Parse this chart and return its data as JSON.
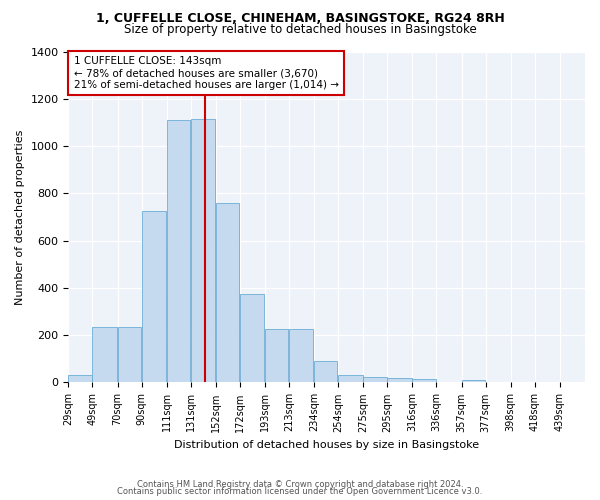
{
  "title_line1": "1, CUFFELLE CLOSE, CHINEHAM, BASINGSTOKE, RG24 8RH",
  "title_line2": "Size of property relative to detached houses in Basingstoke",
  "xlabel": "Distribution of detached houses by size in Basingstoke",
  "ylabel": "Number of detached properties",
  "footer_line1": "Contains HM Land Registry data © Crown copyright and database right 2024.",
  "footer_line2": "Contains public sector information licensed under the Open Government Licence v3.0.",
  "annotation_line1": "1 CUFFELLE CLOSE: 143sqm",
  "annotation_line2": "← 78% of detached houses are smaller (3,670)",
  "annotation_line3": "21% of semi-detached houses are larger (1,014) →",
  "bar_color": "#c5d9ef",
  "bar_edge_color": "#6baed6",
  "red_line_color": "#cc0000",
  "background_color": "#eef2f9",
  "grid_color": "#ffffff",
  "categories": [
    "29sqm",
    "49sqm",
    "70sqm",
    "90sqm",
    "111sqm",
    "131sqm",
    "152sqm",
    "172sqm",
    "193sqm",
    "213sqm",
    "234sqm",
    "254sqm",
    "275sqm",
    "295sqm",
    "316sqm",
    "336sqm",
    "357sqm",
    "377sqm",
    "398sqm",
    "418sqm",
    "439sqm"
  ],
  "bin_edges": [
    29,
    49,
    70,
    90,
    111,
    131,
    152,
    172,
    193,
    213,
    234,
    254,
    275,
    295,
    316,
    336,
    357,
    377,
    398,
    418,
    439,
    460
  ],
  "values": [
    30,
    235,
    235,
    725,
    1110,
    1115,
    760,
    375,
    225,
    225,
    90,
    30,
    25,
    20,
    15,
    0,
    10,
    0,
    0,
    0,
    0
  ],
  "property_line_x": 143,
  "ylim": [
    0,
    1400
  ],
  "yticks": [
    0,
    200,
    400,
    600,
    800,
    1000,
    1200,
    1400
  ],
  "figsize": [
    6.0,
    5.0
  ],
  "dpi": 100
}
